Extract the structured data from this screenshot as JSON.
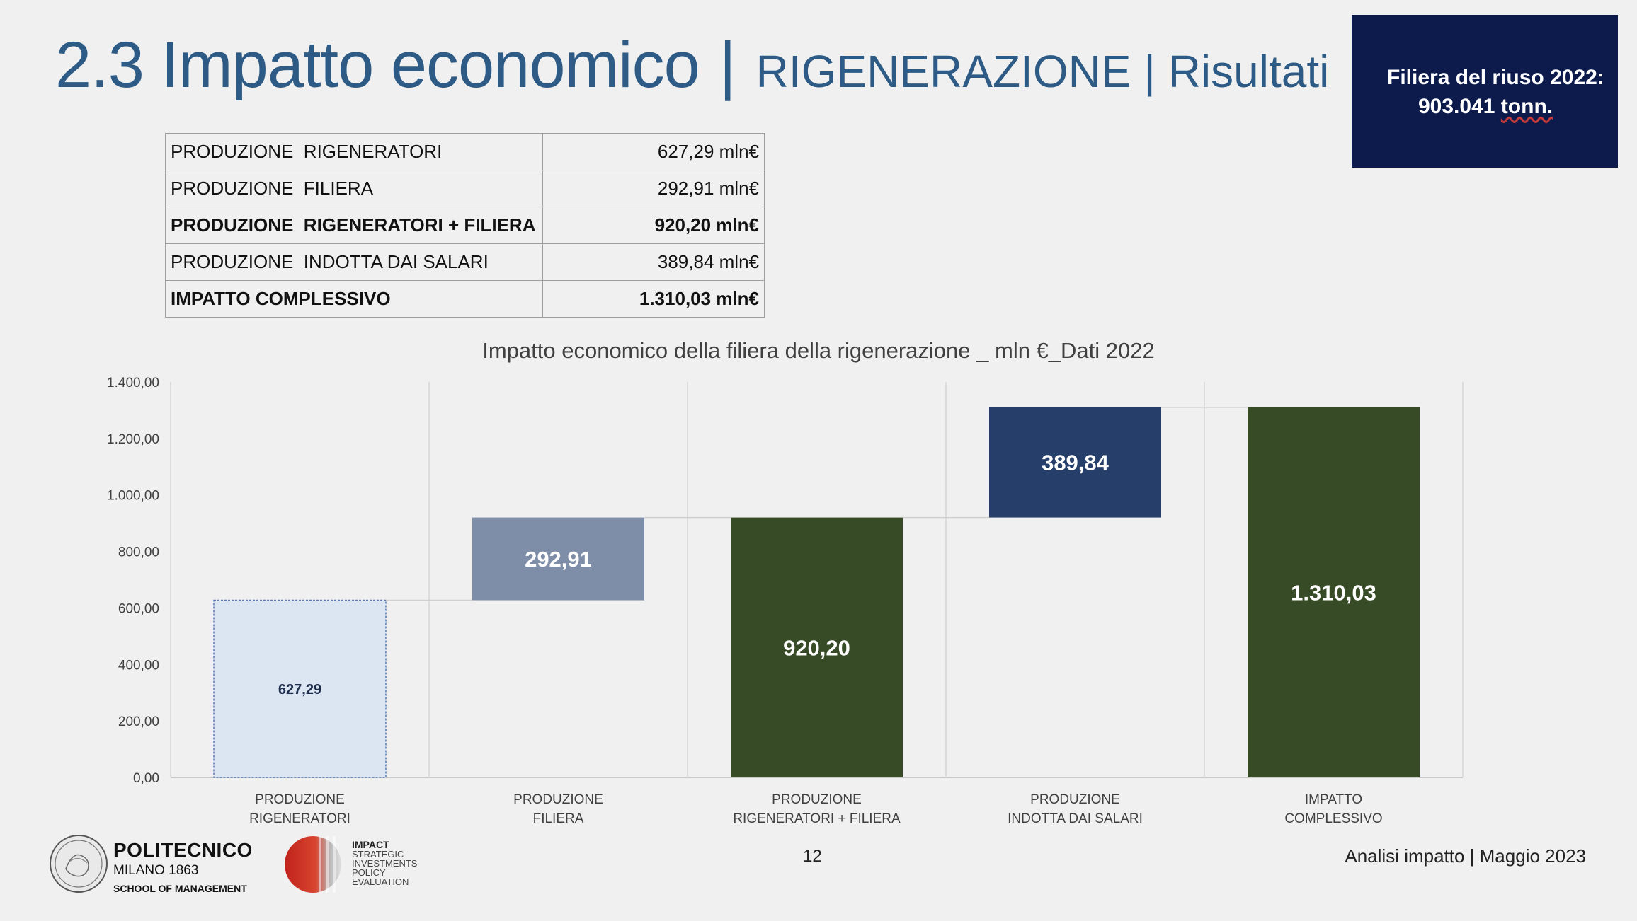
{
  "title": {
    "main": "2.3 Impatto economico",
    "separator": "|",
    "sub": "RIGENERAZIONE | Risultati"
  },
  "infobox": {
    "line1": "Filiera del riuso 2022:",
    "line2_number": "903.041",
    "line2_unit": "tonn.",
    "background": "#0d1b4c"
  },
  "summary_table": [
    {
      "label": "PRODUZIONE  RIGENERATORI",
      "value": "627,29 mln€",
      "bold": false
    },
    {
      "label": "PRODUZIONE  FILIERA",
      "value": "292,91 mln€",
      "bold": false
    },
    {
      "label": "PRODUZIONE  RIGENERATORI + FILIERA",
      "value": "920,20 mln€",
      "bold": true
    },
    {
      "label": "PRODUZIONE  INDOTTA DAI SALARI",
      "value": "389,84 mln€",
      "bold": false
    },
    {
      "label": "IMPATTO COMPLESSIVO",
      "value": "1.310,03 mln€",
      "bold": true
    }
  ],
  "chart_data": {
    "type": "bar",
    "subtype": "waterfall",
    "title": "Impatto economico della filiera della rigenerazione _ mln €_Dati 2022",
    "ylim": [
      0,
      1400
    ],
    "yticks": [
      0,
      200,
      400,
      600,
      800,
      1000,
      1200,
      1400
    ],
    "ytick_labels": [
      "0,00",
      "200,00",
      "400,00",
      "600,00",
      "800,00",
      "1.000,00",
      "1.200,00",
      "1.400,00"
    ],
    "grid": true,
    "categories": [
      [
        "PRODUZIONE",
        "RIGENERATORI"
      ],
      [
        "PRODUZIONE",
        "FILIERA"
      ],
      [
        "PRODUZIONE",
        "RIGENERATORI + FILIERA"
      ],
      [
        "PRODUZIONE",
        "INDOTTA DAI SALARI"
      ],
      [
        "IMPATTO",
        "COMPLESSIVO"
      ]
    ],
    "bars": [
      {
        "start": 0,
        "value": 627.29,
        "label": "627,29",
        "kind": "increase",
        "color": "#dce6f2",
        "label_color": "#1f2d4d"
      },
      {
        "start": 627.29,
        "value": 292.91,
        "label": "292,91",
        "kind": "increase",
        "color": "#7f8ea8",
        "label_color": "#ffffff"
      },
      {
        "start": 0,
        "value": 920.2,
        "label": "920,20",
        "kind": "total",
        "color": "#374b26",
        "label_color": "#ffffff"
      },
      {
        "start": 920.2,
        "value": 389.84,
        "label": "389,84",
        "kind": "increase",
        "color": "#253f6a",
        "label_color": "#ffffff"
      },
      {
        "start": 0,
        "value": 1310.03,
        "label": "1.310,03",
        "kind": "total",
        "color": "#374b26",
        "label_color": "#ffffff"
      }
    ]
  },
  "footer": {
    "logo_line1": "POLITECNICO",
    "logo_line2": "MILANO 1863",
    "logo_line3": "SCHOOL OF MANAGEMENT",
    "impact_lines": [
      "IMPACT",
      "STRATEGIC",
      "INVESTMENTS",
      "POLICY",
      "EVALUATION"
    ],
    "page_number": "12",
    "right_text": "Analisi impatto | Maggio 2023"
  }
}
